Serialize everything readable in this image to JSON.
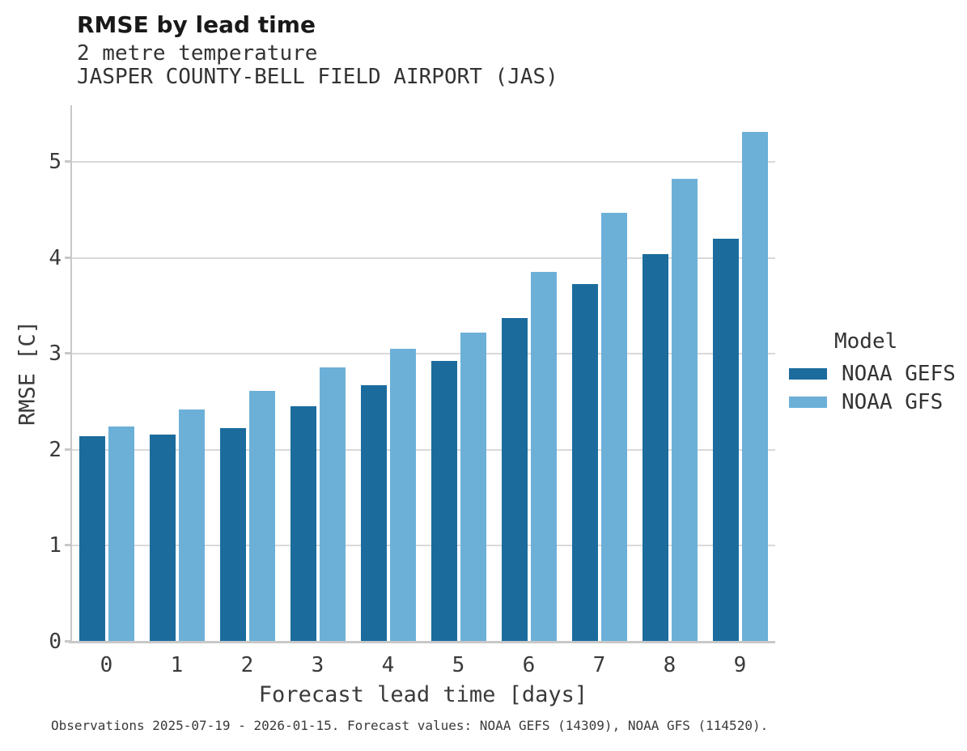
{
  "header": {
    "title": "RMSE by lead time",
    "subtitle1": "2 metre temperature",
    "subtitle2": "JASPER COUNTY-BELL FIELD AIRPORT (JAS)"
  },
  "chart_data": {
    "type": "bar",
    "title": "RMSE by lead time",
    "subtitle": "2 metre temperature",
    "station": "JASPER COUNTY-BELL FIELD AIRPORT (JAS)",
    "categories": [
      "0",
      "1",
      "2",
      "3",
      "4",
      "5",
      "6",
      "7",
      "8",
      "9"
    ],
    "series": [
      {
        "name": "NOAA GEFS",
        "color": "#1b6c9d",
        "values": [
          2.14,
          2.16,
          2.23,
          2.45,
          2.67,
          2.93,
          3.37,
          3.73,
          4.04,
          4.2
        ]
      },
      {
        "name": "NOAA GFS",
        "color": "#6cb0d8",
        "values": [
          2.24,
          2.42,
          2.61,
          2.86,
          3.05,
          3.22,
          3.85,
          4.47,
          4.82,
          5.31
        ]
      }
    ],
    "xlabel": "Forecast lead time [days]",
    "ylabel": "RMSE [C]",
    "yticks": [
      0,
      1,
      2,
      3,
      4,
      5
    ],
    "ylim": [
      0,
      5.59
    ],
    "grid": "horizontal",
    "legend_title": "Model",
    "legend_position": "right"
  },
  "caption": "Observations 2025-07-19 - 2026-01-15. Forecast values: NOAA GEFS (14309), NOAA GFS (114520)."
}
